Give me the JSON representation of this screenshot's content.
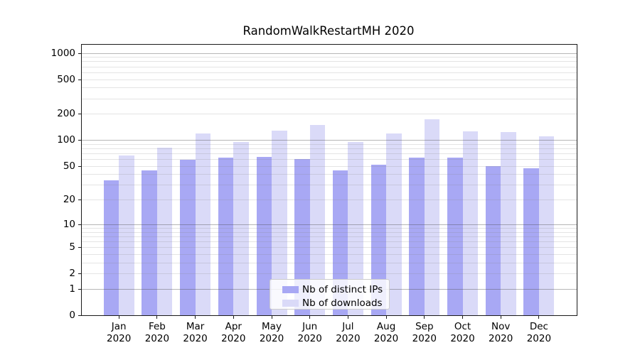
{
  "title": "RandomWalkRestartMH 2020",
  "chart_data": {
    "type": "bar",
    "title": "RandomWalkRestartMH 2020",
    "categories": [
      "Jan",
      "Feb",
      "Mar",
      "Apr",
      "May",
      "Jun",
      "Jul",
      "Aug",
      "Sep",
      "Oct",
      "Nov",
      "Dec"
    ],
    "x_tick_second_line": "2020",
    "series": [
      {
        "name": "Nb of distinct IPs",
        "key": "distinct-ips",
        "color": "#a8a8f4",
        "values": [
          34,
          44,
          59,
          62,
          64,
          60,
          44,
          52,
          62,
          62,
          50,
          47
        ]
      },
      {
        "name": "Nb of downloads",
        "key": "downloads",
        "color": "#dadaf8",
        "values": [
          66,
          81,
          118,
          95,
          128,
          150,
          94,
          118,
          172,
          127,
          124,
          110
        ]
      }
    ],
    "yscale": "log1p",
    "yticks": [
      0,
      1,
      2,
      5,
      10,
      20,
      50,
      100,
      200,
      500,
      1000
    ],
    "ylim": [
      0,
      1237
    ],
    "grid_major": [
      1,
      10,
      100,
      1000
    ],
    "grid_minor": [
      2,
      3,
      4,
      5,
      6,
      7,
      8,
      9,
      20,
      30,
      40,
      50,
      60,
      70,
      80,
      90,
      200,
      300,
      400,
      500,
      600,
      700,
      800,
      900
    ],
    "grid_on": true,
    "legend_position": "lower center",
    "xlabel": "",
    "ylabel": ""
  },
  "colors": {
    "background": "#ffffff",
    "spine": "#1a1a1a",
    "grid_major": "#b5b5b5",
    "grid_minor": "#e3e3e3",
    "series_dark": "#a8a8f4",
    "series_light": "#dadaf8",
    "legend_border": "#cccccc"
  }
}
